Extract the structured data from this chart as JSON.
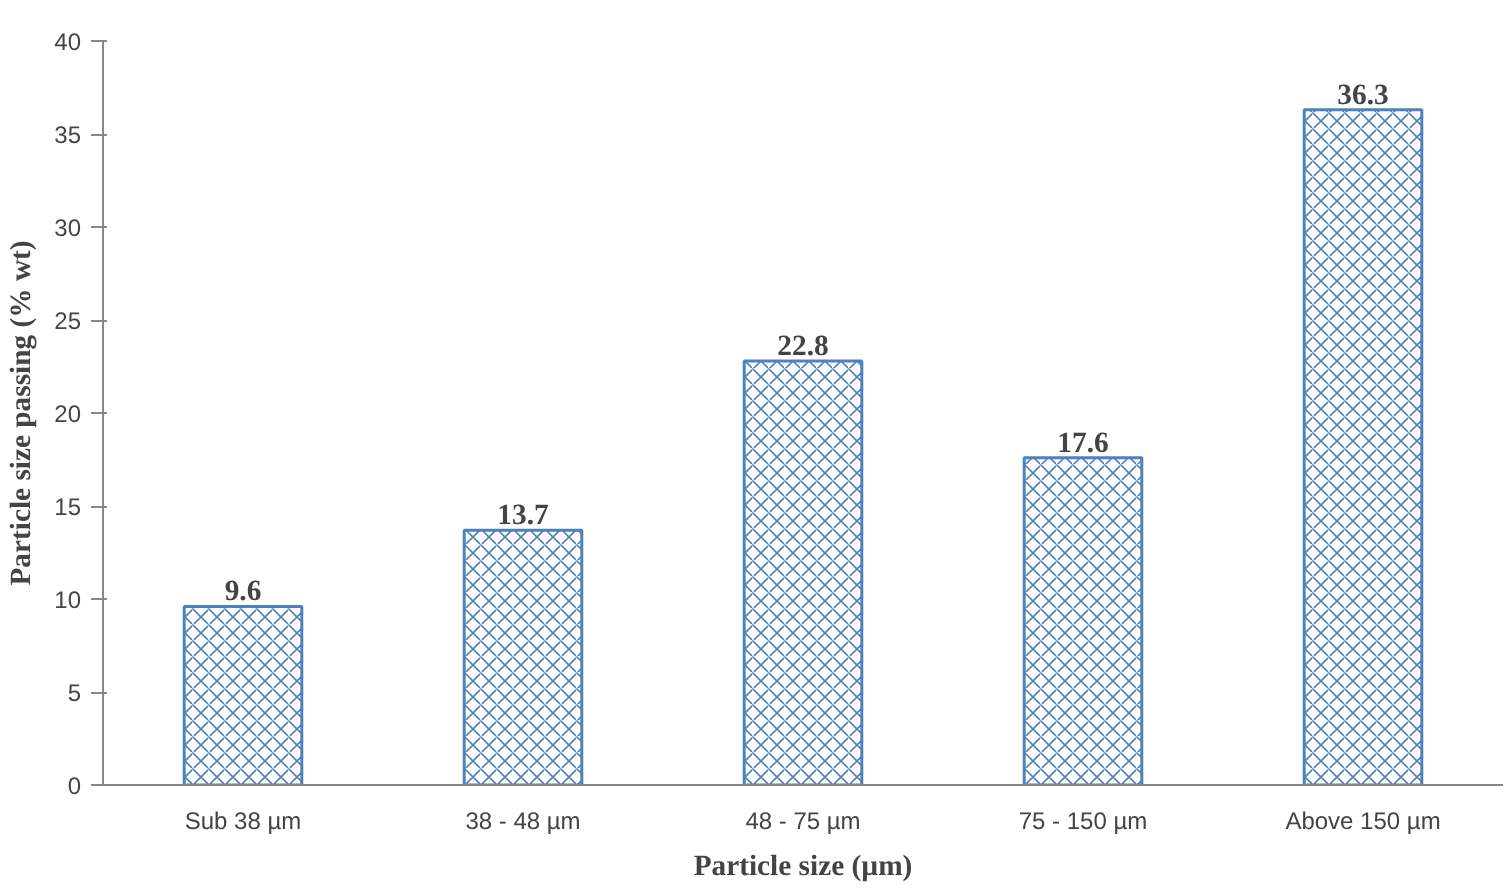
{
  "chart_data": {
    "type": "bar",
    "xlabel": "Particle size (µm)",
    "ylabel": "Particle size passing (% wt)",
    "categories": [
      "Sub 38 µm",
      "38 - 48 µm",
      "48 - 75 µm",
      "75 - 150 µm",
      "Above 150 µm"
    ],
    "values": [
      9.6,
      13.7,
      22.8,
      17.6,
      36.3
    ],
    "color": "#4f81bd",
    "ylim": [
      0,
      40
    ],
    "yticks": [
      0,
      5,
      10,
      15,
      20,
      25,
      30,
      35,
      40
    ],
    "data_labels": true,
    "grid": false
  }
}
